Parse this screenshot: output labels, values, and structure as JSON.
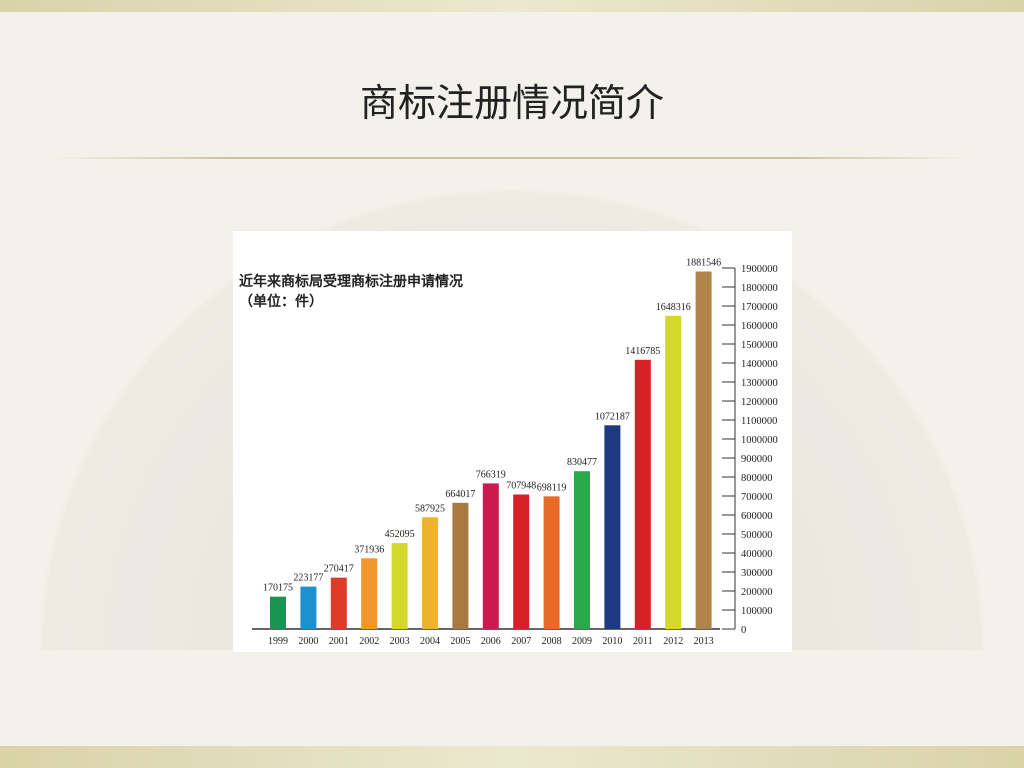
{
  "slide": {
    "title": "商标注册情况简介"
  },
  "chart_data": {
    "type": "bar",
    "title": "近年来商标局受理商标注册申请情况",
    "subtitle": "（单位：件）",
    "categories": [
      "1999",
      "2000",
      "2001",
      "2002",
      "2003",
      "2004",
      "2005",
      "2006",
      "2007",
      "2008",
      "2009",
      "2010",
      "2011",
      "2012",
      "2013"
    ],
    "values": [
      170175,
      223177,
      270417,
      371936,
      452095,
      587925,
      664017,
      766319,
      707948,
      698119,
      830477,
      1072187,
      1416785,
      1648316,
      1881546
    ],
    "colors": [
      "#1a9450",
      "#1e90d0",
      "#e03a2a",
      "#f0962a",
      "#d4d82a",
      "#f0b030",
      "#a87a40",
      "#cc1a50",
      "#d82028",
      "#e86a28",
      "#2aa84a",
      "#1e3a80",
      "#d82028",
      "#d4d82a",
      "#b08448"
    ],
    "ylim": [
      0,
      1900000
    ],
    "yticks": [
      "0",
      "100000",
      "200000",
      "300000",
      "400000",
      "500000",
      "600000",
      "700000",
      "800000",
      "900000",
      "1000000",
      "1100000",
      "1200000",
      "1300000",
      "1400000",
      "1500000",
      "1600000",
      "1700000",
      "1800000",
      "1900000"
    ],
    "axis_position": "right",
    "grid": false,
    "data_labels": true
  }
}
